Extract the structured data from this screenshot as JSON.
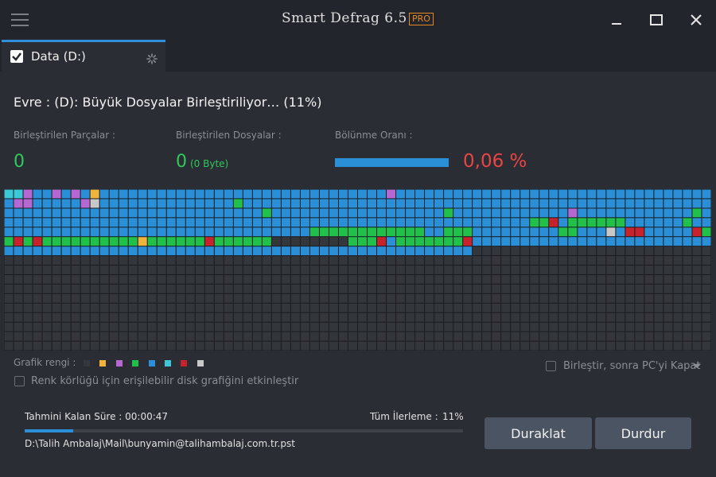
{
  "window": {
    "title": "Smart Defrag 6.5",
    "badge": "PRO"
  },
  "tab": {
    "label": "Data (D:)"
  },
  "phase": "Evre : (D): Büyük Dosyalar Birleştiriliyor… (11%)",
  "stats": {
    "fragments_label": "Birleştirilen Parçalar :",
    "fragments_value": "0",
    "files_label": "Birleştirilen Dosyalar :",
    "files_value": "0",
    "files_sub": "(0 Byte)",
    "ratio_label": "Bölünme Oranı :",
    "ratio_value": "0,06 %",
    "ratio_bar_fraction": 0.98
  },
  "disk_map": {
    "cols": 74,
    "rows": 17,
    "cells_filled": 882,
    "palette": {
      "E": "#33363b",
      "B": "#2a8fd6",
      "G": "#20c04a",
      "R": "#c8222c",
      "Y": "#f0b43c",
      "P": "#b567d2",
      "C": "#3cc8d6",
      "L": "#c8c8c8"
    },
    "rows_data": [
      "CCPBBPBPBYBBBBBBBBBBBBBBBBBBBBBBBBBBBBBBPBBBBBBBBBBBBBBBBBBBBBBBBBBBBBBBBB",
      "BPPBBBBBPLBBBBBBBBBBBBBBGBBBBBBBBBBBBBBBBBBBBBBBBBBBBBBBBBBBBBBBBBBBBBBBBB",
      "BBBBBBBBBBBBBBBBBBBBBBBBBBBGBBBBBBBBBBBBBBBBBBGBBBBBBBBBBBBPBBBBBBBBBBBBGB",
      "BBBBBBBBBBBBBBBBBBBBBBBBBBBBBBBBBBBBBBBBBBBBBBBBBBBBBBBGGRBGGGGGGBBBBBBGBB",
      "BBBBBBBBBBBBBBBBBBBBBBBBBBBBBBBBGGGGGGGGGGGGBBGGGBBBBBBBBBGGBBBLBRRBBBBBRGG",
      "GRGRGGGGGGGGGGYGGGGGGRGGGGGGEEEEEEEEGGGRBGGGGGGGRBBBBBBBBBBBBBBBBBBBBBBBBBB",
      "BBBBBBBBBBBBBBBBBBBBBBBBBBBBBBBBBBBBBBBBBBBBBBBBBEEEEEEEEEEEEEEEEEEEEEEEEEE"
    ]
  },
  "legend": {
    "label": "Grafik rengi :",
    "colors": [
      "#33363b",
      "#f0b43c",
      "#b567d2",
      "#20c04a",
      "#2a8fd6",
      "#3cc8d6",
      "#c8222c",
      "#c8c8c8"
    ]
  },
  "options": {
    "colorblind_label": "Renk körlüğü için erişilebilir disk grafiğini etkinleştir",
    "after_label": "Birleştir, sonra PC'yi Kapat"
  },
  "progress": {
    "remaining_label": "Tahmini Kalan Süre : 00:00:47",
    "overall_label": "Tüm İlerleme :",
    "overall_value": "11%",
    "fraction": 0.11,
    "current_file": "D:\\Talih Ambalaj\\Mail\\bunyamin@talihambalaj.com.tr.pst"
  },
  "buttons": {
    "pause": "Duraklat",
    "stop": "Durdur"
  }
}
